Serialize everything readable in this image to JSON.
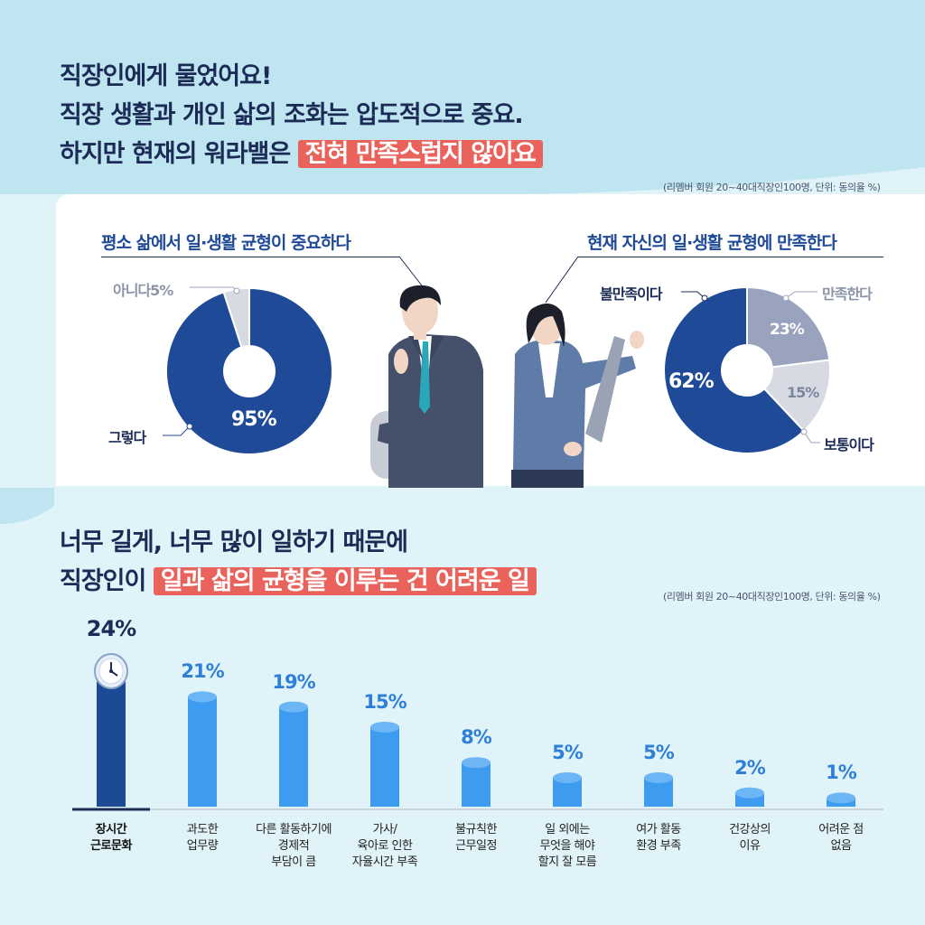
{
  "headline1": {
    "line1": "직장인에게 물었어요!",
    "line2": "직장 생활과 개인 삶의 조화는 압도적으로 중요.",
    "line3_prefix": "하지만 현재의 워라밸은",
    "line3_highlight": "전혀 만족스럽지 않아요"
  },
  "note1": "(리멤버 회원 20~40대직장인100명, 단위: 동의율 %)",
  "headline2": {
    "line1": "너무 길게, 너무 많이 일하기 때문에",
    "line2_prefix": "직장인이",
    "line2_highlight": "일과 삶의 균형을 이루는 건 어려운 일"
  },
  "note2": "(리멤버 회원 20~40대직장인100명, 단위: 동의율 %)",
  "colors": {
    "navy": "#1f4a98",
    "grey_blue": "#9aa3bd",
    "light_grey": "#d7dae3",
    "bar_blue": "#3d9cf0",
    "bar_navy": "#1c4a94",
    "highlight": "#e9625b"
  },
  "chart_data": [
    {
      "type": "pie",
      "title": "평소 삶에서 일·생활 균형이 중요하다",
      "categories": [
        "그렇다",
        "아니다"
      ],
      "values": [
        95,
        5
      ],
      "value_labels": [
        "95%",
        "5%"
      ],
      "label_texts": [
        "그렇다",
        "아니다5%"
      ],
      "donut": true
    },
    {
      "type": "pie",
      "title": "현재 자신의 일·생활 균형에 만족한다",
      "categories": [
        "불만족이다",
        "만족한다",
        "보통이다"
      ],
      "values": [
        62,
        23,
        15
      ],
      "value_labels": [
        "62%",
        "23%",
        "15%"
      ],
      "donut": true
    },
    {
      "type": "bar",
      "categories": [
        "장시간\n근로문화",
        "과도한\n업무량",
        "다른 활동하기에\n경제적\n부담이 큼",
        "가사/\n육아로 인한\n자율시간 부족",
        "불규칙한\n근무일정",
        "일 외에는\n무엇을 해야\n할지 잘 모름",
        "여가 활동\n환경 부족",
        "건강상의\n이유",
        "어려운 점\n없음"
      ],
      "values": [
        24,
        21,
        19,
        15,
        8,
        5,
        5,
        2,
        1
      ],
      "value_labels": [
        "24%",
        "21%",
        "19%",
        "15%",
        "8%",
        "5%",
        "5%",
        "2%",
        "1%"
      ],
      "highlight_index": 0
    }
  ]
}
